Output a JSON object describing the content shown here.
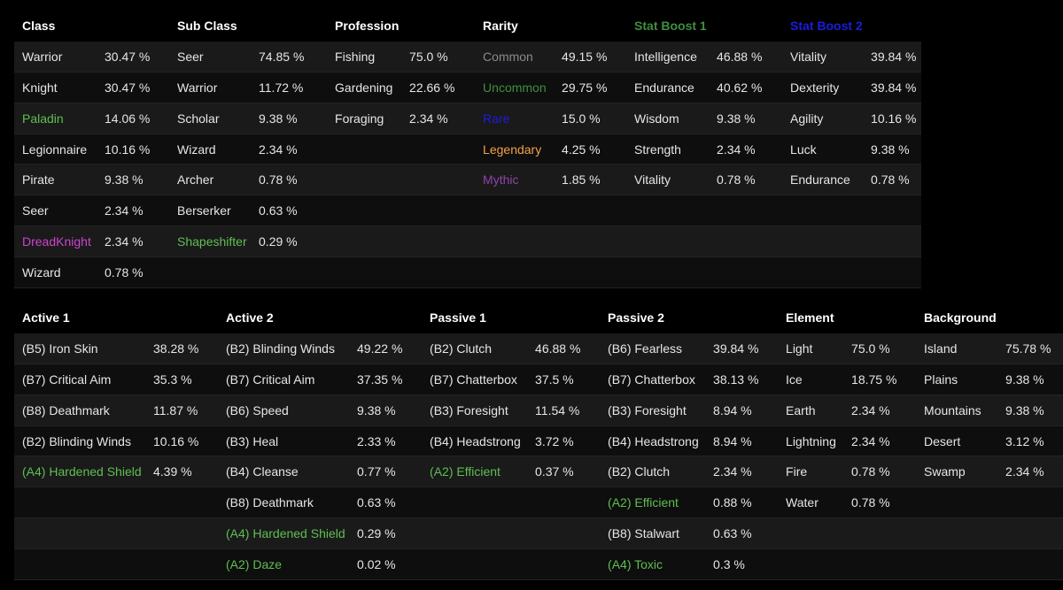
{
  "colors": {
    "default": "#e6e6e6",
    "green": "#5fbf52",
    "magenta": "#cc44cc",
    "gray": "#8a8a8a",
    "blue": "#1c1cdd",
    "orange": "#f0a24a",
    "purple": "#8e44ad",
    "dark_green": "#3f8f3f"
  },
  "tables": [
    {
      "name": "top",
      "widths": [
        93,
        82,
        92,
        86,
        84,
        83,
        89,
        82,
        93,
        83,
        91,
        66
      ],
      "headers": [
        {
          "text": "Class",
          "color": "#ffffff"
        },
        {
          "text": "Sub Class",
          "color": "#ffffff"
        },
        {
          "text": "Profession",
          "color": "#ffffff"
        },
        {
          "text": "Rarity",
          "color": "#ffffff"
        },
        {
          "text": "Stat Boost 1",
          "color": "#3f8f3f"
        },
        {
          "text": "Stat Boost 2",
          "color": "#1c1cdd"
        }
      ],
      "rows": [
        [
          [
            "Warrior",
            "30.47 %",
            ""
          ],
          [
            "Seer",
            "74.85 %",
            ""
          ],
          [
            "Fishing",
            "75.0 %",
            ""
          ],
          [
            "Common",
            "49.15 %",
            "#8a8a8a"
          ],
          [
            "Intelligence",
            "46.88 %",
            ""
          ],
          [
            "Vitality",
            "39.84 %",
            ""
          ]
        ],
        [
          [
            "Knight",
            "30.47 %",
            ""
          ],
          [
            "Warrior",
            "11.72 %",
            ""
          ],
          [
            "Gardening",
            "22.66 %",
            ""
          ],
          [
            "Uncommon",
            "29.75 %",
            "#3f8f3f"
          ],
          [
            "Endurance",
            "40.62 %",
            ""
          ],
          [
            "Dexterity",
            "39.84 %",
            ""
          ]
        ],
        [
          [
            "Paladin",
            "14.06 %",
            "#5fbf52"
          ],
          [
            "Scholar",
            "9.38 %",
            ""
          ],
          [
            "Foraging",
            "2.34 %",
            ""
          ],
          [
            "Rare",
            "15.0 %",
            "#1c1cdd"
          ],
          [
            "Wisdom",
            "9.38 %",
            ""
          ],
          [
            "Agility",
            "10.16 %",
            ""
          ]
        ],
        [
          [
            "Legionnaire",
            "10.16 %",
            ""
          ],
          [
            "Wizard",
            "2.34 %",
            ""
          ],
          null,
          [
            "Legendary",
            "4.25 %",
            "#f0a24a"
          ],
          [
            "Strength",
            "2.34 %",
            ""
          ],
          [
            "Luck",
            "9.38 %",
            ""
          ]
        ],
        [
          [
            "Pirate",
            "9.38 %",
            ""
          ],
          [
            "Archer",
            "0.78 %",
            ""
          ],
          null,
          [
            "Mythic",
            "1.85 %",
            "#8e44ad"
          ],
          [
            "Vitality",
            "0.78 %",
            ""
          ],
          [
            "Endurance",
            "0.78 %",
            ""
          ]
        ],
        [
          [
            "Seer",
            "2.34 %",
            ""
          ],
          [
            "Berserker",
            "0.63 %",
            ""
          ],
          null,
          null,
          null,
          null
        ],
        [
          [
            "DreadKnight",
            "2.34 %",
            "#cc44cc"
          ],
          [
            "Shapeshifter",
            "0.29 %",
            "#5fbf52"
          ],
          null,
          null,
          null,
          null
        ],
        [
          [
            "Wizard",
            "0.78 %",
            ""
          ],
          null,
          null,
          null,
          null,
          null
        ]
      ]
    },
    {
      "name": "bottom",
      "widths": [
        148,
        82,
        148,
        82,
        119,
        82,
        119,
        82,
        74,
        82,
        92,
        84
      ],
      "headers": [
        {
          "text": "Active 1",
          "color": "#ffffff"
        },
        {
          "text": "Active 2",
          "color": "#ffffff"
        },
        {
          "text": "Passive 1",
          "color": "#ffffff"
        },
        {
          "text": "Passive 2",
          "color": "#ffffff"
        },
        {
          "text": "Element",
          "color": "#ffffff"
        },
        {
          "text": "Background",
          "color": "#ffffff"
        }
      ],
      "rows": [
        [
          [
            "(B5) Iron Skin",
            "38.28 %",
            ""
          ],
          [
            "(B2) Blinding Winds",
            "49.22 %",
            ""
          ],
          [
            "(B2) Clutch",
            "46.88 %",
            ""
          ],
          [
            "(B6) Fearless",
            "39.84 %",
            ""
          ],
          [
            "Light",
            "75.0 %",
            ""
          ],
          [
            "Island",
            "75.78 %",
            ""
          ]
        ],
        [
          [
            "(B7) Critical Aim",
            "35.3 %",
            ""
          ],
          [
            "(B7) Critical Aim",
            "37.35 %",
            ""
          ],
          [
            "(B7) Chatterbox",
            "37.5 %",
            ""
          ],
          [
            "(B7) Chatterbox",
            "38.13 %",
            ""
          ],
          [
            "Ice",
            "18.75 %",
            ""
          ],
          [
            "Plains",
            "9.38 %",
            ""
          ]
        ],
        [
          [
            "(B8) Deathmark",
            "11.87 %",
            ""
          ],
          [
            "(B6) Speed",
            "9.38 %",
            ""
          ],
          [
            "(B3) Foresight",
            "11.54 %",
            ""
          ],
          [
            "(B3) Foresight",
            "8.94 %",
            ""
          ],
          [
            "Earth",
            "2.34 %",
            ""
          ],
          [
            "Mountains",
            "9.38 %",
            ""
          ]
        ],
        [
          [
            "(B2) Blinding Winds",
            "10.16 %",
            ""
          ],
          [
            "(B3) Heal",
            "2.33 %",
            ""
          ],
          [
            "(B4) Headstrong",
            "3.72 %",
            ""
          ],
          [
            "(B4) Headstrong",
            "8.94 %",
            ""
          ],
          [
            "Lightning",
            "2.34 %",
            ""
          ],
          [
            "Desert",
            "3.12 %",
            ""
          ]
        ],
        [
          [
            "(A4) Hardened Shield",
            "4.39 %",
            "#5fbf52"
          ],
          [
            "(B4) Cleanse",
            "0.77 %",
            ""
          ],
          [
            "(A2) Efficient",
            "0.37 %",
            "#5fbf52"
          ],
          [
            "(B2) Clutch",
            "2.34 %",
            ""
          ],
          [
            "Fire",
            "0.78 %",
            ""
          ],
          [
            "Swamp",
            "2.34 %",
            ""
          ]
        ],
        [
          null,
          [
            "(B8) Deathmark",
            "0.63 %",
            ""
          ],
          null,
          [
            "(A2) Efficient",
            "0.88 %",
            "#5fbf52"
          ],
          [
            "Water",
            "0.78 %",
            ""
          ],
          null
        ],
        [
          null,
          [
            "(A4) Hardened Shield",
            "0.29 %",
            "#5fbf52"
          ],
          null,
          [
            "(B8) Stalwart",
            "0.63 %",
            ""
          ],
          null,
          null
        ],
        [
          null,
          [
            "(A2) Daze",
            "0.02 %",
            "#5fbf52"
          ],
          null,
          [
            "(A4) Toxic",
            "0.3 %",
            "#5fbf52"
          ],
          null,
          null
        ]
      ]
    }
  ]
}
